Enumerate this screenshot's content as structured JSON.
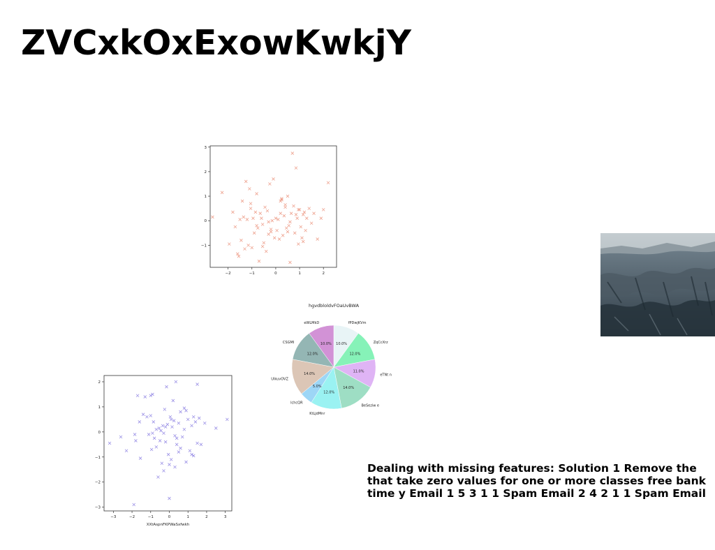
{
  "title": "ZVCxkOxExowKwkjY",
  "caption": "Dealing with missing features: Solution 1 Remove the that take zero values for one or more classes free bank time y Email 1 5 3 1 1 Spam Email 2 4 2 1 1 Spam Email",
  "chart_data": [
    {
      "type": "scatter",
      "marker": "x",
      "color": "#e8836a",
      "title": "",
      "xlabel": "",
      "ylabel": "",
      "xlim": [
        -2.75,
        2.55
      ],
      "ylim": [
        -1.9,
        3.05
      ],
      "xticks": [
        -2,
        -1,
        0,
        1,
        2
      ],
      "yticks": [
        -1,
        0,
        1,
        2,
        3
      ],
      "grid": false,
      "x": [
        -2.65,
        -2.25,
        -1.95,
        -1.8,
        -1.7,
        -1.6,
        -1.55,
        -1.5,
        -1.45,
        -1.4,
        -1.35,
        -1.3,
        -1.25,
        -1.2,
        -1.15,
        -1.1,
        -1.05,
        -1.0,
        -0.95,
        -0.9,
        -0.85,
        -0.8,
        -0.75,
        -0.7,
        -0.65,
        -0.6,
        -0.55,
        -0.5,
        -0.45,
        -0.4,
        -0.35,
        -0.3,
        -0.25,
        -0.2,
        -0.15,
        -0.1,
        -0.05,
        0.0,
        0.05,
        0.1,
        0.15,
        0.2,
        0.25,
        0.3,
        0.35,
        0.4,
        0.45,
        0.5,
        0.55,
        0.6,
        0.65,
        0.7,
        0.75,
        0.8,
        0.85,
        0.9,
        0.95,
        1.0,
        1.05,
        1.1,
        1.15,
        1.2,
        1.25,
        1.3,
        1.4,
        1.5,
        1.6,
        1.75,
        1.9,
        2.0,
        2.2,
        -0.3,
        0.2,
        0.5,
        -0.8,
        0.85,
        1.15,
        -1.05,
        0.4,
        -0.2,
        0.95,
        0.6,
        -0.55,
        0.25
      ],
      "y": [
        0.15,
        1.15,
        -0.95,
        0.35,
        -0.25,
        -1.35,
        -1.45,
        0.05,
        -0.8,
        0.8,
        0.15,
        -1.15,
        1.6,
        0.05,
        -1.0,
        1.3,
        0.7,
        -1.1,
        0.1,
        -0.5,
        0.35,
        1.1,
        -0.3,
        -1.65,
        0.3,
        0.1,
        -0.15,
        -0.9,
        0.55,
        -1.25,
        0.4,
        -0.05,
        1.5,
        -0.35,
        0.0,
        1.7,
        -0.7,
        0.1,
        -0.4,
        0.05,
        -0.75,
        0.3,
        0.85,
        -0.6,
        0.2,
        0.55,
        -0.3,
        1.0,
        -0.2,
        -1.7,
        0.3,
        2.75,
        0.6,
        -0.5,
        2.15,
        0.1,
        -0.95,
        0.45,
        -0.25,
        -0.7,
        0.25,
        0.35,
        -0.4,
        0.1,
        0.5,
        -0.1,
        0.3,
        -0.75,
        0.1,
        0.45,
        1.55,
        -0.55,
        0.8,
        -0.45,
        -0.2,
        0.25,
        -0.85,
        0.5,
        0.65,
        -0.45,
        0.45,
        -0.05,
        -1.05,
        0.9
      ]
    },
    {
      "type": "pie",
      "title": "hgvdbloldvFOaUvBWA",
      "labels": [
        "fPDwjKVm",
        "ZqCcXrz",
        "eTNt n",
        "BeSeziw e",
        "KtLjdMnr",
        "lchcQR",
        "UikuvOVZ",
        "CSGMI",
        "eWLMkD"
      ],
      "values": [
        10.0,
        12.0,
        11.0,
        14.0,
        12.0,
        5.0,
        14.0,
        12.0,
        10.0
      ],
      "colors": [
        "#e8f4f6",
        "#86f2b8",
        "#dfb4f5",
        "#9edec4",
        "#9af2f2",
        "#9dd6f6",
        "#dcc6b6",
        "#94b6b4",
        "#d292d6"
      ],
      "legend": "none"
    },
    {
      "type": "scatter",
      "marker": "x",
      "color": "#7a6cde",
      "title": "",
      "xlabel": "XXtAspnFKPWaSxfwkh",
      "ylabel": "uFYKdQDokgOMKlNTLF",
      "xlim": [
        -3.5,
        3.35
      ],
      "ylim": [
        -3.15,
        2.25
      ],
      "xticks": [
        -3,
        -2,
        -1,
        0,
        1,
        2,
        3
      ],
      "yticks": [
        -3,
        -2,
        -1,
        0,
        1,
        2
      ],
      "grid": false,
      "x": [
        -3.2,
        -2.6,
        -2.3,
        -1.9,
        -1.85,
        -1.7,
        -1.55,
        -1.4,
        -1.3,
        -1.2,
        -1.1,
        -1.0,
        -0.95,
        -0.9,
        -0.85,
        -0.8,
        -0.7,
        -0.6,
        -0.55,
        -0.5,
        -0.45,
        -0.4,
        -0.35,
        -0.3,
        -0.25,
        -0.2,
        -0.15,
        -0.1,
        -0.05,
        0.0,
        0.05,
        0.1,
        0.15,
        0.2,
        0.25,
        0.3,
        0.35,
        0.4,
        0.5,
        0.6,
        0.7,
        0.8,
        0.9,
        1.0,
        1.1,
        1.2,
        1.3,
        1.4,
        1.5,
        1.6,
        1.7,
        1.9,
        2.5,
        3.1,
        -1.8,
        0.0,
        0.5,
        -0.7,
        1.2,
        -0.3,
        0.8,
        -1.6,
        0.3,
        1.3,
        -0.9,
        0.1,
        0.6,
        -0.2,
        0.9,
        1.5,
        -1.0,
        0.4
      ],
      "y": [
        -0.45,
        -0.2,
        -0.75,
        -2.9,
        -0.1,
        1.45,
        -1.05,
        0.7,
        1.4,
        0.6,
        -0.1,
        0.65,
        -0.7,
        1.5,
        0.4,
        -0.25,
        -0.6,
        -1.8,
        0.15,
        -0.35,
        0.05,
        -1.25,
        0.25,
        -0.05,
        0.9,
        -0.4,
        1.8,
        0.3,
        -0.9,
        -1.3,
        0.6,
        -1.1,
        0.2,
        1.25,
        0.45,
        -0.15,
        2.0,
        -0.5,
        0.35,
        0.8,
        -0.2,
        0.1,
        -1.2,
        0.5,
        -0.75,
        0.25,
        -0.95,
        0.4,
        1.9,
        0.55,
        -0.5,
        0.35,
        0.15,
        0.5,
        -0.35,
        -2.65,
        -0.8,
        0.1,
        -0.9,
        -1.55,
        0.95,
        0.4,
        -1.4,
        0.6,
        -0.05,
        0.5,
        -0.65,
        0.2,
        0.85,
        -0.45,
        1.45,
        -0.25
      ]
    }
  ]
}
